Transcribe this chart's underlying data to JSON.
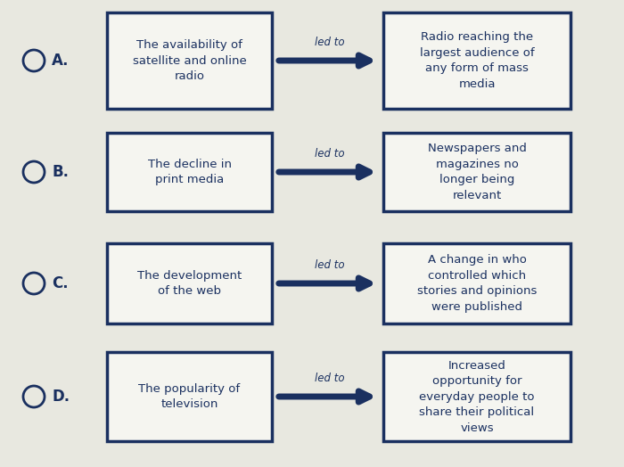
{
  "bg_color": "#e8e8e0",
  "box_bg": "#f5f5f0",
  "box_border": "#1a3060",
  "text_color": "#1a3060",
  "arrow_color": "#1a3060",
  "rows": [
    {
      "label": "A.",
      "left_text": "The availability of\nsatellite and online\nradio",
      "right_text": "Radio reaching the\nlargest audience of\nany form of mass\nmedia"
    },
    {
      "label": "B.",
      "left_text": "The decline in\nprint media",
      "right_text": "Newspapers and\nmagazines no\nlonger being\nrelevant"
    },
    {
      "label": "C.",
      "left_text": "The development\nof the web",
      "right_text": "A change in who\ncontrolled which\nstories and opinions\nwere published"
    },
    {
      "label": "D.",
      "left_text": "The popularity of\ntelevision",
      "right_text": "Increased\nopportunity for\neveryday people to\nshare their political\nviews"
    }
  ],
  "led_to_text": "led to",
  "circle_color": "#e8e8e0",
  "circle_border": "#1a3060",
  "figsize": [
    7.0,
    5.24
  ],
  "dpi": 100
}
